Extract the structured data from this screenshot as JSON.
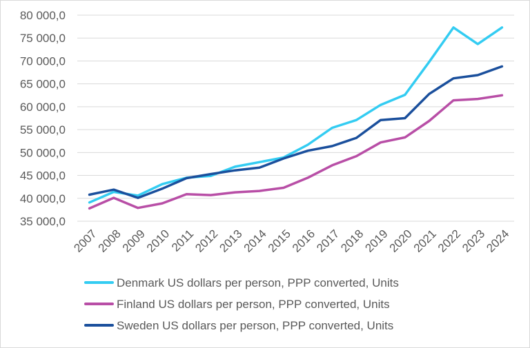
{
  "chart_data": {
    "type": "line",
    "title": "",
    "xlabel": "",
    "ylabel": "",
    "categories": [
      "2007",
      "2008",
      "2009",
      "2010",
      "2011",
      "2012",
      "2013",
      "2014",
      "2015",
      "2016",
      "2017",
      "2018",
      "2019",
      "2020",
      "2021",
      "2022",
      "2023",
      "2024"
    ],
    "ylim": [
      35000,
      80000
    ],
    "y_ticks": [
      35000,
      40000,
      45000,
      50000,
      55000,
      60000,
      65000,
      70000,
      75000,
      80000
    ],
    "y_tick_labels": [
      "35 000,0",
      "40 000,0",
      "45 000,0",
      "50 000,0",
      "55 000,0",
      "60 000,0",
      "65 000,0",
      "70 000,0",
      "75 000,0",
      "80 000,0"
    ],
    "grid": "horizontal",
    "legend_position": "bottom",
    "series": [
      {
        "name": "Denmark US dollars per person, PPP converted, Units",
        "color": "#33ccf2",
        "values": [
          39100,
          41400,
          40600,
          43100,
          44500,
          44900,
          46900,
          47900,
          48900,
          51700,
          55400,
          57100,
          60400,
          62600,
          69800,
          77300,
          73700,
          77300
        ]
      },
      {
        "name": "Finland US dollars per person, PPP converted, Units",
        "color": "#b84ea6",
        "values": [
          37800,
          40100,
          37900,
          38900,
          40900,
          40700,
          41300,
          41600,
          42300,
          44500,
          47200,
          49200,
          52200,
          53300,
          56900,
          61400,
          61700,
          62500
        ]
      },
      {
        "name": "Sweden US dollars per person, PPP converted, Units",
        "color": "#1a4f9c",
        "values": [
          40800,
          41900,
          40100,
          42100,
          44400,
          45300,
          46100,
          46700,
          48700,
          50400,
          51400,
          53200,
          57100,
          57500,
          62800,
          66200,
          66900,
          68800
        ]
      }
    ]
  }
}
